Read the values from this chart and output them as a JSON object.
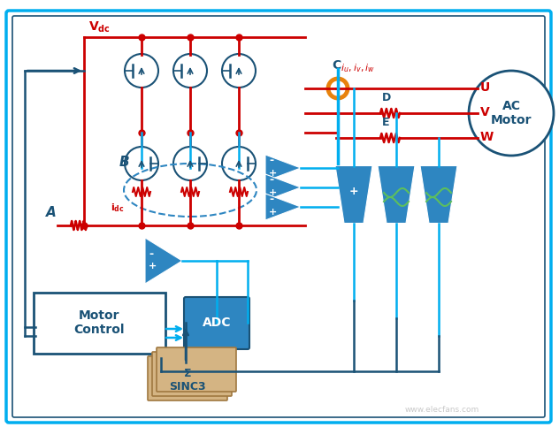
{
  "bg_color": "#ffffff",
  "red": "#cc0000",
  "blue_dark": "#1a5276",
  "blue_mid": "#2e86c1",
  "blue_light": "#5dade2",
  "cyan": "#00aeef",
  "orange": "#e8820c",
  "tan": "#d4b483",
  "green": "#5dbf5d",
  "watermark": "www.elecfans.com",
  "label_A": "A",
  "label_B": "B",
  "label_C": "C",
  "label_D": "D",
  "label_E": "E",
  "label_U": "U",
  "label_V": "V",
  "label_W": "W",
  "motor_label": "AC\nMotor",
  "motor_control_label": "Motor\nControl",
  "adc_label": "ADC",
  "sinc_label": "Σ\nSINC3"
}
